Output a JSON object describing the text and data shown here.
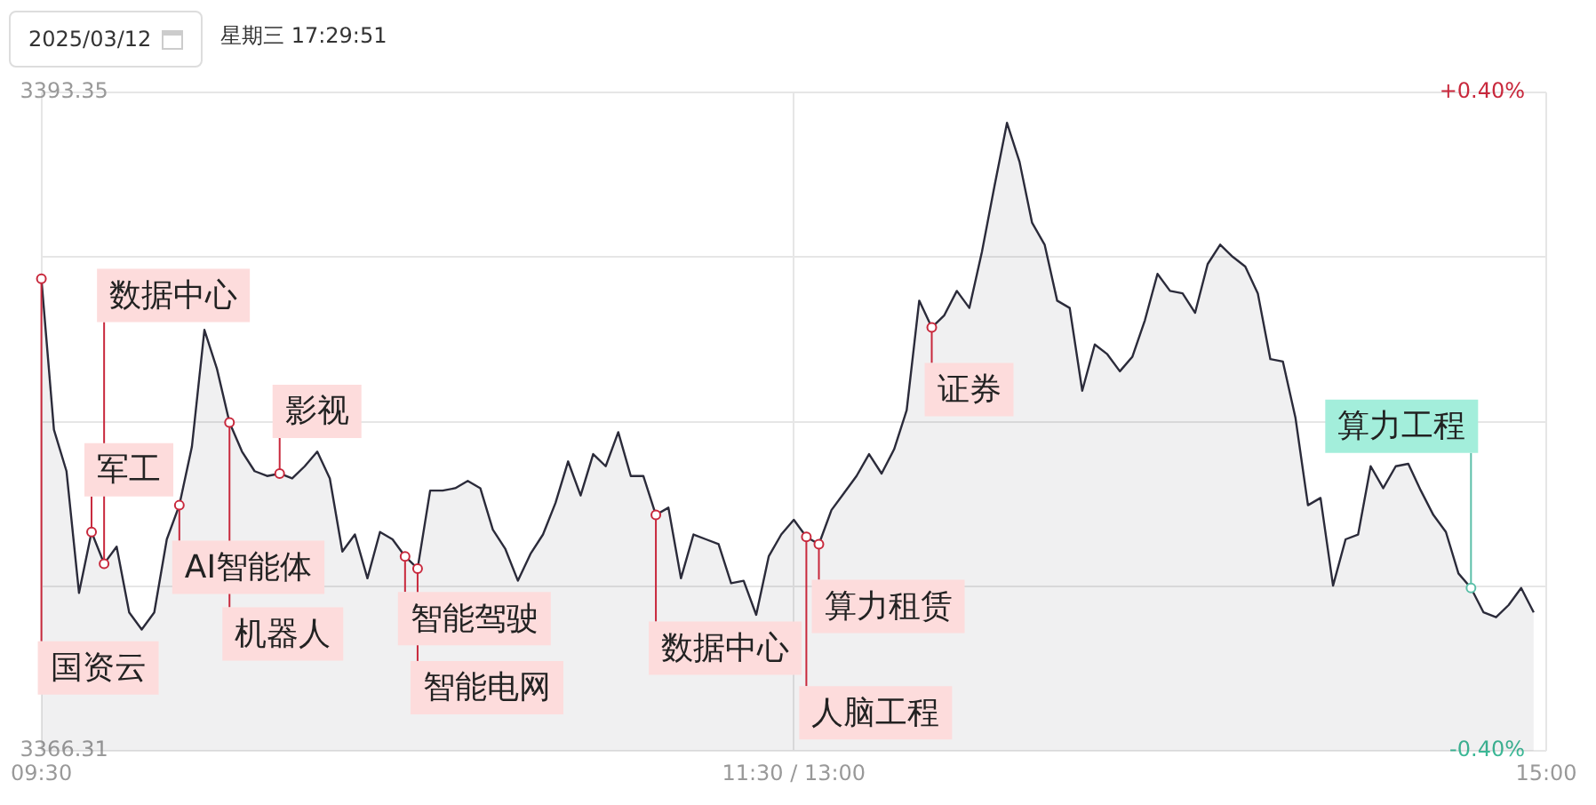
{
  "chart_data": {
    "type": "area",
    "categories": [
      "09:30",
      null,
      null,
      null,
      null,
      null,
      null,
      null,
      null,
      null,
      null,
      null,
      null,
      null,
      null,
      null,
      null,
      null,
      null,
      null,
      null,
      null,
      null,
      null,
      null,
      null,
      null,
      null,
      null,
      null,
      null,
      null,
      null,
      null,
      null,
      null,
      null,
      null,
      null,
      null,
      null,
      null,
      null,
      null,
      null,
      null,
      null,
      null,
      null,
      null,
      null,
      null,
      null,
      null,
      null,
      null,
      null,
      null,
      null,
      null,
      "11:30 / 13:00",
      null,
      null,
      null,
      null,
      null,
      null,
      null,
      null,
      null,
      null,
      null,
      null,
      null,
      null,
      null,
      null,
      null,
      null,
      null,
      null,
      null,
      null,
      null,
      null,
      null,
      null,
      null,
      null,
      null,
      null,
      null,
      null,
      null,
      null,
      null,
      null,
      null,
      null,
      null,
      null,
      null,
      null,
      null,
      null,
      null,
      null,
      null,
      null,
      null,
      null,
      null,
      null,
      null,
      null,
      null,
      null,
      null,
      null,
      null,
      "15:00"
    ],
    "series": [
      {
        "color": "#2b2b3a",
        "values": [
          3385.7,
          3379.5,
          3377.8,
          3372.8,
          3375.3,
          3374.0,
          3374.7,
          3372.0,
          3371.3,
          3372.0,
          3375.0,
          3376.4,
          3378.8,
          3383.6,
          3382.0,
          3379.8,
          3378.6,
          3377.8,
          3377.6,
          3377.7,
          3377.5,
          3378.0,
          3378.6,
          3377.5,
          3374.5,
          3375.2,
          3373.4,
          3375.3,
          3375.0,
          3374.3,
          3373.8,
          3377.0,
          3377.0,
          3377.1,
          3377.4,
          3377.1,
          3375.4,
          3374.6,
          3373.3,
          3374.4,
          3375.2,
          3376.5,
          3378.2,
          3376.8,
          3378.5,
          3378.0,
          3379.4,
          3377.6,
          3377.6,
          3376.0,
          3376.3,
          3373.4,
          3375.2,
          3375.0,
          3374.8,
          3373.2,
          3373.3,
          3371.9,
          3374.3,
          3375.2,
          3375.8,
          3375.1,
          3374.8,
          3376.2,
          3376.9,
          3377.6,
          3378.5,
          3377.7,
          3378.7,
          3380.3,
          3384.8,
          3383.7,
          3384.2,
          3385.2,
          3384.5,
          3386.8,
          3389.5,
          3392.1,
          3390.5,
          3388.0,
          3387.1,
          3384.8,
          3384.5,
          3381.1,
          3383.0,
          3382.6,
          3381.9,
          3382.5,
          3384.0,
          3385.9,
          3385.2,
          3385.1,
          3384.3,
          3386.3,
          3387.1,
          3386.6,
          3386.2,
          3385.1,
          3382.4,
          3382.3,
          3380.0,
          3376.4,
          3376.7,
          3373.1,
          3375.0,
          3375.2,
          3378.0,
          3377.1,
          3378.0,
          3378.1,
          3377.0,
          3376.0,
          3375.3,
          3373.6,
          3373.0,
          3372.0,
          3371.8,
          3372.3,
          3373.0,
          3372.0,
          null
        ],
        "value_labels": [
          "国资云",
          null,
          null,
          null,
          "军工",
          "数据中心",
          null,
          null,
          null,
          null,
          null,
          "AI智能体",
          null,
          null,
          null,
          "机器人",
          null,
          null,
          null,
          "影视",
          null,
          null,
          null,
          null,
          null,
          null,
          null,
          null,
          null,
          "智能驾驶",
          "智能电网",
          null,
          null,
          null,
          null,
          null,
          null,
          null,
          null,
          null,
          null,
          null,
          null,
          null,
          null,
          null,
          null,
          null,
          null,
          "数据中心",
          null,
          null,
          null,
          null,
          null,
          null,
          null,
          null,
          null,
          null,
          null,
          "人脑工程",
          "算力租赁",
          null,
          null,
          null,
          null,
          null,
          null,
          null,
          null,
          "证券",
          null,
          null,
          null,
          null,
          null,
          null,
          null,
          null,
          null,
          null,
          null,
          null,
          null,
          null,
          null,
          null,
          null,
          null,
          null,
          null,
          null,
          null,
          null,
          null,
          null,
          null,
          null,
          null,
          null,
          null,
          null,
          null,
          null,
          null,
          null,
          null,
          null,
          null,
          null,
          null,
          null,
          null,
          "算力工程",
          null,
          null,
          null,
          null,
          null,
          null
        ]
      }
    ],
    "ylim": [
      3366.31,
      3393.35
    ],
    "yticks": [
      3366.31,
      {
        "value": 3373.07,
        "label": null
      },
      {
        "value": 3379.83,
        "label": null
      },
      {
        "value": 3386.59,
        "label": null
      },
      3393.35
    ],
    "y2lim": [
      -0.4,
      0.4
    ],
    "y2ticks": [
      {
        "value": -0.4,
        "label": "-0.40%"
      },
      {
        "value": 0.4,
        "label": "+0.40%"
      }
    ],
    "grid": true,
    "marker": "none",
    "annotations": [
      "2025/03/12",
      "星期三 17:29:51"
    ]
  }
}
